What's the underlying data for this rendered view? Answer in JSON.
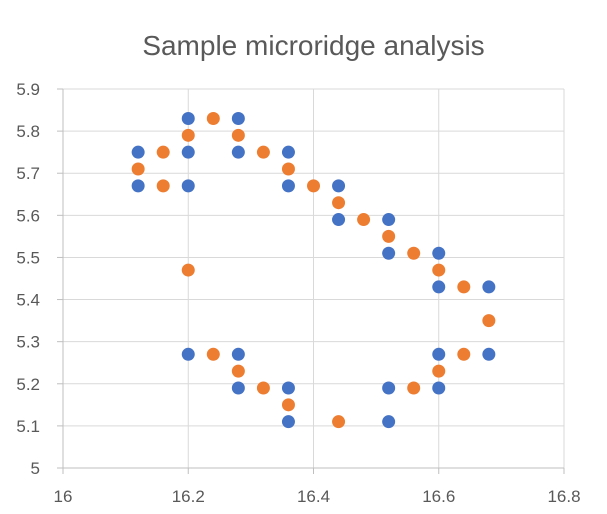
{
  "chart_data": {
    "type": "scatter",
    "title": "Sample microridge analysis",
    "xlabel": "",
    "ylabel": "",
    "xlim": [
      16,
      16.8
    ],
    "ylim": [
      5,
      5.9
    ],
    "x_ticks": [
      "16",
      "16.2",
      "16.4",
      "16.6",
      "16.8"
    ],
    "y_ticks": [
      "5",
      "5.1",
      "5.2",
      "5.3",
      "5.4",
      "5.5",
      "5.6",
      "5.7",
      "5.8",
      "5.9"
    ],
    "grid": true,
    "legend": "none",
    "series": [
      {
        "color": "#4472C4",
        "points": [
          [
            16.12,
            5.75
          ],
          [
            16.12,
            5.67
          ],
          [
            16.2,
            5.83
          ],
          [
            16.2,
            5.75
          ],
          [
            16.2,
            5.67
          ],
          [
            16.28,
            5.83
          ],
          [
            16.28,
            5.75
          ],
          [
            16.36,
            5.75
          ],
          [
            16.36,
            5.67
          ],
          [
            16.44,
            5.67
          ],
          [
            16.44,
            5.59
          ],
          [
            16.52,
            5.59
          ],
          [
            16.52,
            5.51
          ],
          [
            16.6,
            5.51
          ],
          [
            16.6,
            5.43
          ],
          [
            16.68,
            5.43
          ],
          [
            16.68,
            5.27
          ],
          [
            16.6,
            5.27
          ],
          [
            16.6,
            5.19
          ],
          [
            16.52,
            5.19
          ],
          [
            16.52,
            5.11
          ],
          [
            16.36,
            5.11
          ],
          [
            16.36,
            5.19
          ],
          [
            16.28,
            5.19
          ],
          [
            16.28,
            5.27
          ],
          [
            16.2,
            5.27
          ]
        ]
      },
      {
        "color": "#ED7D31",
        "points": [
          [
            16.12,
            5.71
          ],
          [
            16.16,
            5.75
          ],
          [
            16.16,
            5.67
          ],
          [
            16.2,
            5.79
          ],
          [
            16.24,
            5.83
          ],
          [
            16.28,
            5.79
          ],
          [
            16.32,
            5.75
          ],
          [
            16.36,
            5.71
          ],
          [
            16.4,
            5.67
          ],
          [
            16.44,
            5.63
          ],
          [
            16.48,
            5.59
          ],
          [
            16.52,
            5.55
          ],
          [
            16.56,
            5.51
          ],
          [
            16.6,
            5.47
          ],
          [
            16.64,
            5.43
          ],
          [
            16.68,
            5.35
          ],
          [
            16.64,
            5.27
          ],
          [
            16.6,
            5.23
          ],
          [
            16.56,
            5.19
          ],
          [
            16.44,
            5.11
          ],
          [
            16.36,
            5.15
          ],
          [
            16.32,
            5.19
          ],
          [
            16.28,
            5.23
          ],
          [
            16.24,
            5.27
          ],
          [
            16.2,
            5.47
          ]
        ]
      }
    ]
  }
}
